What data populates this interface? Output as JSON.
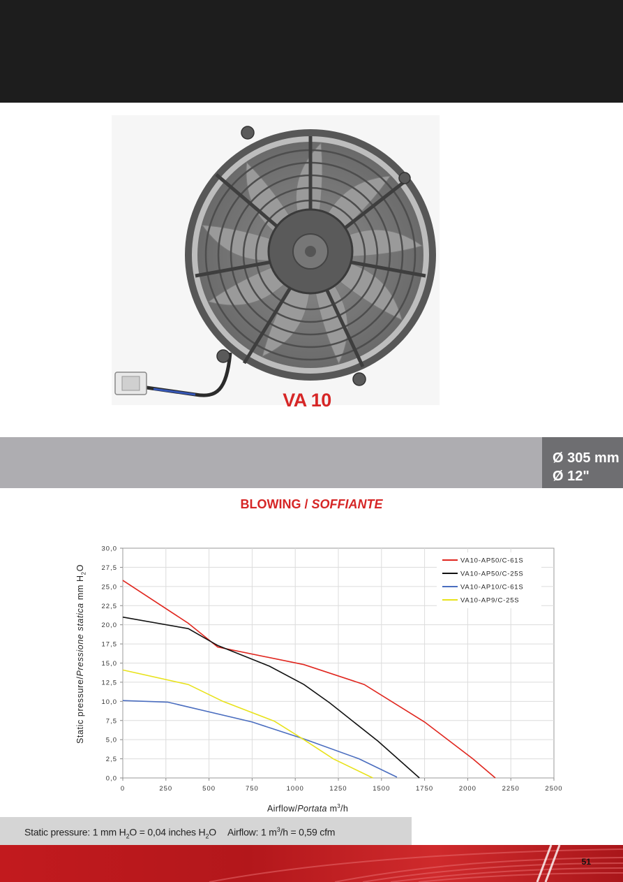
{
  "header": {
    "color": "#1d1d1d"
  },
  "product": {
    "model": "VA 10",
    "diameter_mm": "Ø 305 mm",
    "diameter_in": "Ø 12\"",
    "accent_color": "#d62626"
  },
  "section": {
    "title_main": "BLOWING / ",
    "title_italic": "SOFFIANTE"
  },
  "chart_data": {
    "type": "line",
    "ylabel_main": "Static pressure/",
    "ylabel_italic": "Pressione statica",
    "ylabel_unit": "mm H",
    "ylabel_sub": "2",
    "ylabel_unit_end": "O",
    "xlabel_main": "Airflow/",
    "xlabel_italic": "Portata",
    "xlabel_unit": "m",
    "xlabel_sup": "3",
    "xlabel_unit_end": "/h",
    "xlim": [
      0,
      2500
    ],
    "ylim": [
      0,
      30
    ],
    "x_ticks": [
      "0",
      "250",
      "500",
      "750",
      "1000",
      "1250",
      "1500",
      "1750",
      "2000",
      "2250",
      "2500"
    ],
    "y_ticks": [
      "0,0",
      "2,5",
      "5,0",
      "7,5",
      "10,0",
      "12,5",
      "15,0",
      "17,5",
      "20,0",
      "22,5",
      "25,0",
      "27,5",
      "30,0"
    ],
    "grid": true,
    "legend_position": "top-right",
    "series": [
      {
        "name": "VA10-AP50/C-61S",
        "color": "#e0261e",
        "x": [
          0,
          380,
          550,
          1050,
          1400,
          1750,
          2030,
          2160
        ],
        "y": [
          25.8,
          20.2,
          17.1,
          14.8,
          12.2,
          7.3,
          2.5,
          0
        ]
      },
      {
        "name": "VA10-AP50/C-25S",
        "color": "#111111",
        "x": [
          0,
          380,
          550,
          850,
          1050,
          1200,
          1480,
          1720
        ],
        "y": [
          21.0,
          19.5,
          17.3,
          14.6,
          12.2,
          9.8,
          4.8,
          0
        ]
      },
      {
        "name": "VA10-AP10/C-61S",
        "color": "#4a6dbf",
        "x": [
          0,
          260,
          750,
          1050,
          1370,
          1590
        ],
        "y": [
          10.1,
          9.9,
          7.3,
          5.1,
          2.5,
          0.1
        ]
      },
      {
        "name": "VA10-AP9/C-25S",
        "color": "#e8e21a",
        "x": [
          0,
          380,
          580,
          880,
          1050,
          1220,
          1450
        ],
        "y": [
          14.1,
          12.2,
          10.0,
          7.4,
          5.0,
          2.5,
          0
        ]
      }
    ]
  },
  "note": {
    "pressure_prefix": "Static pressure: 1 mm H",
    "pressure_sub": "2",
    "pressure_mid": "O = 0,04 inches H",
    "pressure_sub2": "2",
    "pressure_end": "O",
    "airflow_prefix": "Airflow: 1 m",
    "airflow_sup": "3",
    "airflow_end": "/h = 0,59 cfm"
  },
  "page_number": "51"
}
